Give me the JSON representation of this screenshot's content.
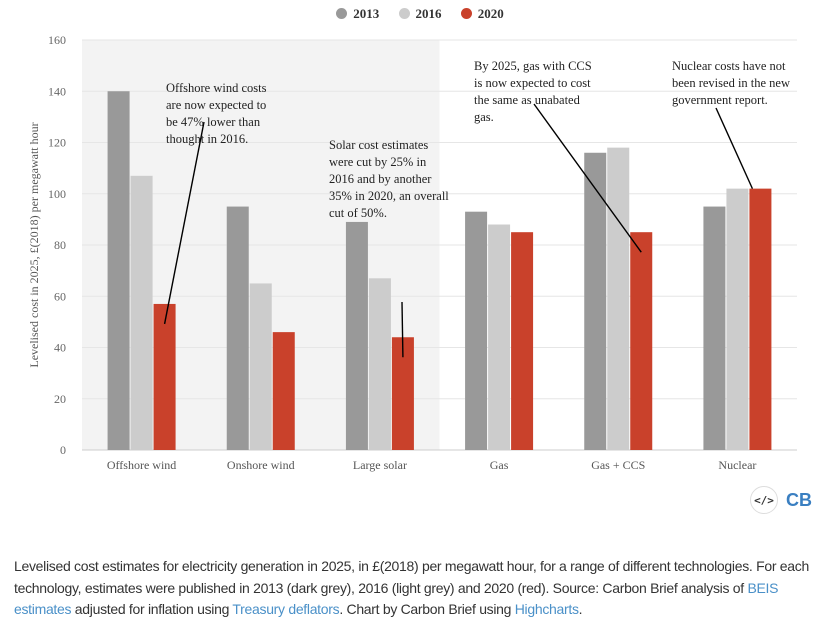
{
  "chart_data": {
    "type": "bar",
    "categories": [
      "Offshore wind",
      "Onshore wind",
      "Large solar",
      "Gas",
      "Gas + CCS",
      "Nuclear"
    ],
    "series": [
      {
        "name": "2013",
        "color": "#999999",
        "values": [
          140,
          95,
          89,
          93,
          116,
          95
        ]
      },
      {
        "name": "2016",
        "color": "#cccccc",
        "values": [
          107,
          65,
          67,
          88,
          118,
          102
        ]
      },
      {
        "name": "2020",
        "color": "#c9412b",
        "values": [
          57,
          46,
          44,
          85,
          85,
          102
        ]
      }
    ],
    "ylabel": "Levelised cost in 2025, £(2018) per megawatt hour",
    "ylim": [
      0,
      160
    ],
    "yticks": [
      0,
      20,
      40,
      60,
      80,
      100,
      120,
      140,
      160
    ],
    "grid": true,
    "legend": "top-center",
    "shaded_categories": [
      "Offshore wind",
      "Onshore wind",
      "Large solar"
    ],
    "annotations": [
      {
        "text": "Offshore wind costs are now expected to be 47% lower than thought in 2016.",
        "target": "Offshore wind 2020"
      },
      {
        "text": "Solar cost estimates were cut by 25% in 2016 and by another 35% in 2020, an overall cut of 50%.",
        "target": "Large solar 2020"
      },
      {
        "text": "By 2025, gas with CCS is now expected to cost the same as unabated gas.",
        "target": "Gas + CCS 2020"
      },
      {
        "text": "Nuclear costs have not been revised in the new government report.",
        "target": "Nuclear 2020"
      }
    ]
  },
  "branding": {
    "embed_icon": "code-icon",
    "logo": "CB"
  },
  "caption": {
    "part1": "Levelised cost estimates for electricity generation in 2025, in £(2018) per megawatt hour, for a range of different technologies. For each technology, estimates were published in 2013 (dark grey), 2016 (light grey) and 2020 (red). Source: Carbon Brief analysis of ",
    "link1": "BEIS estimates",
    "part2": " adjusted for inflation using ",
    "link2": "Treasury deflators",
    "part3": ". Chart by Carbon Brief using ",
    "link3": "Highcharts",
    "part4": "."
  }
}
